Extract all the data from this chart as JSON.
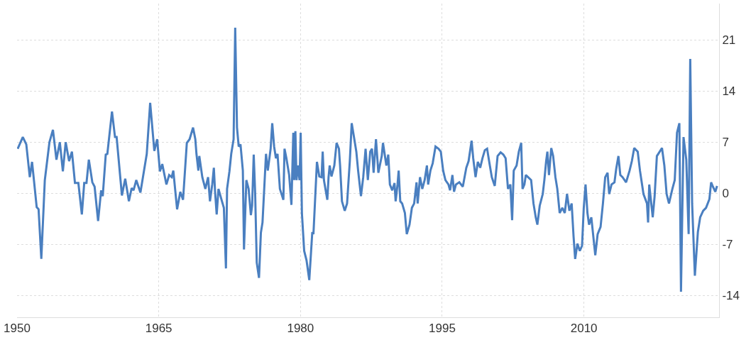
{
  "chart_data": {
    "type": "line",
    "grid": true,
    "marker": "none",
    "line_style": "solid",
    "xlim": [
      1950,
      2024.3
    ],
    "xticks": [
      1950,
      1965,
      1980,
      1995,
      2010
    ],
    "ylim": [
      -17,
      26
    ],
    "yticks": [
      -14,
      -7,
      0,
      7,
      14,
      21
    ],
    "series": [
      {
        "color": "#4a7fc0",
        "x": [
          1950.07,
          1950.61,
          1950.98,
          1951.35,
          1951.59,
          1952.08,
          1952.28,
          1952.57,
          1952.94,
          1953.43,
          1953.8,
          1954.17,
          1954.53,
          1954.85,
          1955.15,
          1955.51,
          1955.81,
          1956.13,
          1956.49,
          1956.86,
          1957.11,
          1957.35,
          1957.6,
          1957.97,
          1958.21,
          1958.58,
          1958.9,
          1959.07,
          1959.39,
          1959.56,
          1960.05,
          1960.37,
          1960.54,
          1961.1,
          1961.45,
          1961.84,
          1962.13,
          1962.33,
          1962.62,
          1963.06,
          1963.73,
          1964.09,
          1964.53,
          1964.83,
          1965.12,
          1965.37,
          1965.81,
          1966.1,
          1966.37,
          1966.54,
          1966.94,
          1967.28,
          1967.57,
          1967.97,
          1968.26,
          1968.63,
          1968.87,
          1968.99,
          1969.19,
          1969.29,
          1969.61,
          1969.93,
          1970.22,
          1970.42,
          1970.66,
          1970.83,
          1970.96,
          1971.13,
          1971.32,
          1971.69,
          1971.89,
          1972.11,
          1972.23,
          1972.48,
          1972.67,
          1972.92,
          1973.09,
          1973.28,
          1973.46,
          1973.65,
          1973.9,
          1974.02,
          1974.27,
          1974.51,
          1974.75,
          1974.88,
          1975.05,
          1975.2,
          1975.37,
          1975.61,
          1975.81,
          1975.98,
          1976.35,
          1976.54,
          1976.84,
          1977.01,
          1977.21,
          1977.4,
          1977.57,
          1977.82,
          1978.19,
          1978.31,
          1978.51,
          1978.8,
          1979.04,
          1979.24,
          1979.34,
          1979.46,
          1979.58,
          1979.73,
          1979.9,
          1980.02,
          1980.15,
          1980.39,
          1980.64,
          1980.93,
          1981.25,
          1981.37,
          1981.74,
          1981.99,
          1982.23,
          1982.35,
          1982.48,
          1982.84,
          1982.97,
          1983.09,
          1983.28,
          1983.58,
          1983.82,
          1984.07,
          1984.19,
          1984.39,
          1984.68,
          1984.93,
          1985.22,
          1985.42,
          1985.66,
          1985.91,
          1986.1,
          1986.4,
          1986.64,
          1986.89,
          1987.13,
          1987.38,
          1987.57,
          1987.74,
          1987.99,
          1988.24,
          1988.6,
          1988.73,
          1989.09,
          1989.29,
          1989.46,
          1989.71,
          1989.95,
          1990.07,
          1990.27,
          1990.39,
          1990.56,
          1990.76,
          1991.05,
          1991.25,
          1991.54,
          1991.79,
          1992.03,
          1992.28,
          1992.4,
          1992.65,
          1992.89,
          1993.14,
          1993.38,
          1993.51,
          1993.75,
          1993.99,
          1994.29,
          1994.61,
          1994.85,
          1995.1,
          1995.34,
          1995.66,
          1995.83,
          1996.08,
          1996.25,
          1996.45,
          1996.81,
          1997.18,
          1997.55,
          1997.79,
          1998.11,
          1998.28,
          1998.53,
          1998.77,
          1999.02,
          1999.26,
          1999.51,
          1999.75,
          2000.0,
          2000.25,
          2000.56,
          2000.86,
          2001.18,
          2001.47,
          2001.71,
          2001.96,
          2002.21,
          2002.4,
          2002.57,
          2002.87,
          2003.11,
          2003.36,
          2003.5,
          2003.7,
          2003.85,
          2004.09,
          2004.41,
          2004.66,
          2004.9,
          2005.07,
          2005.32,
          2005.64,
          2005.81,
          2006.0,
          2006.13,
          2006.3,
          2006.54,
          2006.74,
          2006.98,
          2007.18,
          2007.43,
          2007.72,
          2007.97,
          2008.21,
          2008.46,
          2008.7,
          2008.9,
          2009.07,
          2009.31,
          2009.56,
          2009.8,
          2009.98,
          2010.17,
          2010.37,
          2010.54,
          2010.78,
          2011.2,
          2011.45,
          2011.76,
          2012.01,
          2012.25,
          2012.5,
          2012.67,
          2012.92,
          2013.23,
          2013.41,
          2013.65,
          2013.85,
          2014.09,
          2014.46,
          2014.83,
          2015.07,
          2015.32,
          2015.69,
          2015.93,
          2016.3,
          2016.67,
          2016.79,
          2016.91,
          2017.28,
          2017.48,
          2017.72,
          2018.02,
          2018.26,
          2018.51,
          2018.75,
          2019.0,
          2019.36,
          2019.61,
          2019.85,
          2020.1,
          2020.27,
          2020.54,
          2020.83,
          2021.08,
          2021.25,
          2021.45,
          2021.74,
          2022.06,
          2022.3,
          2022.62,
          2022.92,
          2023.28,
          2023.46,
          2023.65,
          2023.9,
          2024.09
        ],
        "values": [
          6.1,
          7.7,
          6.7,
          2.2,
          4.3,
          -1.9,
          -2.2,
          -9.0,
          1.8,
          7.0,
          8.7,
          4.6,
          7.0,
          3.0,
          7.0,
          4.4,
          5.7,
          1.4,
          1.4,
          -2.9,
          1.4,
          1.4,
          4.6,
          1.5,
          0.9,
          -3.8,
          0.4,
          -0.4,
          5.3,
          5.4,
          11.2,
          7.7,
          7.7,
          -0.3,
          2.0,
          -1.1,
          0.7,
          0.4,
          1.8,
          0.1,
          5.4,
          12.4,
          5.8,
          7.4,
          3.0,
          4.0,
          1.2,
          2.5,
          2.2,
          3.1,
          -2.2,
          0.2,
          -0.9,
          6.9,
          7.4,
          9.0,
          7.4,
          5.4,
          3.1,
          5.1,
          2.2,
          0.6,
          2.2,
          -1.1,
          1.2,
          3.5,
          0.2,
          -2.9,
          0.6,
          -1.1,
          -2.0,
          -10.3,
          0.6,
          3.0,
          5.4,
          7.4,
          22.7,
          9.0,
          6.4,
          6.7,
          3.1,
          -7.7,
          1.8,
          0.6,
          -3.0,
          -1.7,
          5.3,
          0.1,
          -9.5,
          -11.6,
          -5.4,
          -4.0,
          5.4,
          3.1,
          6.1,
          9.6,
          6.4,
          4.8,
          5.4,
          0.6,
          -0.9,
          6.1,
          4.8,
          2.5,
          -1.6,
          8.3,
          1.8,
          8.5,
          1.8,
          3.8,
          1.8,
          8.3,
          -2.7,
          -7.9,
          -9.2,
          -11.9,
          -5.3,
          -5.6,
          4.3,
          2.3,
          2.2,
          5.7,
          1.8,
          -0.9,
          2.2,
          3.8,
          2.3,
          3.8,
          6.9,
          6.1,
          3.8,
          -1.1,
          -2.4,
          -1.4,
          4.4,
          9.6,
          7.7,
          5.7,
          3.1,
          -0.4,
          2.2,
          6.1,
          1.8,
          5.7,
          6.1,
          2.8,
          7.4,
          2.8,
          5.1,
          6.9,
          3.8,
          5.3,
          1.2,
          0.4,
          1.4,
          -1.1,
          1.2,
          3.1,
          -1.1,
          -1.4,
          -2.7,
          -5.6,
          -4.3,
          -2.0,
          -1.4,
          1.5,
          -1.4,
          2.2,
          0.6,
          1.8,
          3.8,
          1.2,
          3.1,
          4.1,
          6.4,
          6.1,
          5.7,
          3.1,
          1.8,
          1.2,
          0.4,
          2.5,
          0.2,
          1.2,
          1.5,
          0.9,
          3.5,
          4.4,
          7.2,
          4.8,
          2.2,
          4.3,
          3.5,
          4.8,
          5.9,
          6.1,
          4.1,
          2.2,
          1.0,
          5.1,
          5.6,
          5.3,
          4.8,
          0.6,
          1.2,
          -3.7,
          3.1,
          3.8,
          5.7,
          6.9,
          0.6,
          1.2,
          2.5,
          2.2,
          1.8,
          -1.4,
          -3.3,
          -4.3,
          -1.7,
          -0.1,
          1.8,
          4.4,
          5.7,
          2.5,
          6.2,
          5.1,
          2.2,
          0.6,
          -2.7,
          -2.0,
          -2.7,
          -0.1,
          -2.4,
          -1.4,
          -5.9,
          -9.0,
          -6.9,
          -7.9,
          -7.2,
          -2.0,
          1.2,
          -2.7,
          -4.3,
          -3.3,
          -8.5,
          -5.6,
          -4.6,
          -1.4,
          2.2,
          2.8,
          -0.1,
          1.2,
          1.5,
          3.3,
          5.1,
          2.5,
          2.2,
          1.5,
          3.1,
          4.4,
          6.2,
          5.7,
          3.1,
          -0.1,
          -1.4,
          -4.0,
          1.2,
          -3.3,
          -0.4,
          5.1,
          5.7,
          6.2,
          3.8,
          -0.1,
          -1.4,
          0.6,
          1.8,
          8.3,
          9.6,
          -13.5,
          7.7,
          4.6,
          -5.6,
          18.4,
          -1.4,
          -11.3,
          -5.3,
          -3.3,
          -2.4,
          -2.0,
          -0.8,
          1.5,
          0.9,
          0.2,
          1.0
        ]
      }
    ]
  }
}
